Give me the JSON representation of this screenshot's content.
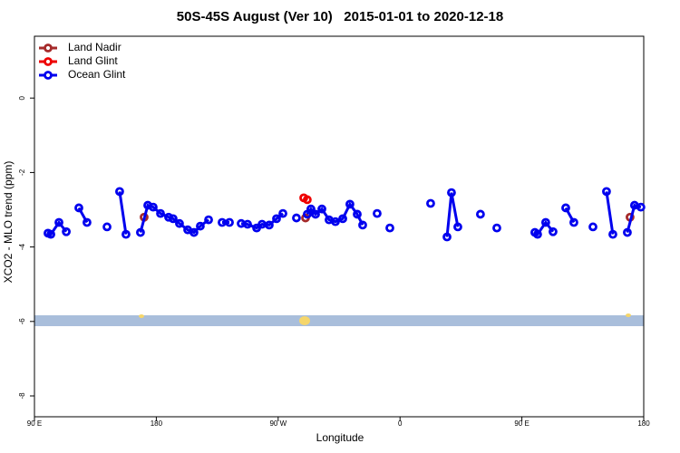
{
  "chart_data": {
    "type": "line",
    "title": "50S-45S August (Ver 10)   2015-01-01 to 2020-12-18",
    "x_label": "Longitude",
    "y_label": "XCO2 - MLO trend (ppm)",
    "xlim": [
      90,
      540
    ],
    "xticks": [
      {
        "value": 90,
        "label": "90 E"
      },
      180,
      {
        "value": 270,
        "label": "90 W"
      },
      {
        "value": 360,
        "label": "0"
      },
      {
        "value": 450,
        "label": "90 E"
      },
      {
        "value": 540,
        "label": "180"
      }
    ],
    "ylim": [
      -8.56,
      1.66
    ],
    "yticks": [
      0,
      -2,
      -4,
      -6,
      -8
    ],
    "legend": "top-left",
    "series": [
      {
        "name": "Land Nadir",
        "color": "#a52a2a",
        "x": [
          171.0,
          null,
          290.2,
          null,
          529.9
        ],
        "values": [
          -3.2,
          null,
          -3.22,
          null,
          -3.2
        ]
      },
      {
        "name": "Land Glint",
        "color": "#ee0000",
        "x": [
          288.9,
          291.5
        ],
        "values": [
          -2.68,
          -2.73
        ]
      },
      {
        "name": "Ocean Glint",
        "color": "#0000ee",
        "x": [
          100.0,
          102.1,
          108.1,
          113.5,
          null,
          122.8,
          128.8,
          null,
          143.6,
          null,
          152.9,
          157.6,
          null,
          168.3,
          173.7,
          177.7,
          183.1,
          189.1,
          192.4,
          197.1,
          203.2,
          207.8,
          212.5,
          218.6,
          null,
          228.6,
          234.0,
          null,
          242.7,
          247.4,
          254.1,
          258.1,
          263.4,
          268.8,
          273.5,
          null,
          283.5,
          null,
          291.5,
          294.2,
          297.6,
          302.3,
          307.6,
          312.3,
          317.7,
          323.0,
          328.4,
          332.4,
          null,
          343.1,
          null,
          352.5,
          null,
          382.6,
          null,
          394.7,
          398.0,
          402.7,
          null,
          419.4,
          null,
          431.5,
          null,
          459.6,
          461.6,
          467.6,
          473.0,
          null,
          482.4,
          488.4,
          null,
          502.5,
          null,
          512.5,
          517.2,
          null,
          527.9,
          533.2,
          537.9
        ],
        "values": [
          -3.63,
          -3.66,
          -3.34,
          -3.59,
          null,
          -2.95,
          -3.34,
          null,
          -3.46,
          null,
          -2.51,
          -3.66,
          null,
          -3.61,
          -2.88,
          -2.93,
          -3.1,
          -3.2,
          -3.24,
          -3.37,
          -3.54,
          -3.61,
          -3.44,
          -3.27,
          null,
          -3.34,
          -3.34,
          null,
          -3.37,
          -3.39,
          -3.49,
          -3.39,
          -3.41,
          -3.24,
          -3.1,
          null,
          -3.22,
          null,
          -3.12,
          -2.98,
          -3.12,
          -2.98,
          -3.27,
          -3.32,
          -3.24,
          -2.85,
          -3.12,
          -3.41,
          null,
          -3.1,
          null,
          -3.49,
          null,
          -2.83,
          null,
          -3.73,
          -2.54,
          -3.46,
          null,
          -3.12,
          null,
          -3.49,
          null,
          -3.61,
          -3.66,
          -3.34,
          -3.59,
          null,
          -2.95,
          -3.34,
          null,
          -3.46,
          null,
          -2.51,
          -3.66,
          null,
          -3.61,
          -2.88,
          -2.93
        ]
      }
    ]
  }
}
